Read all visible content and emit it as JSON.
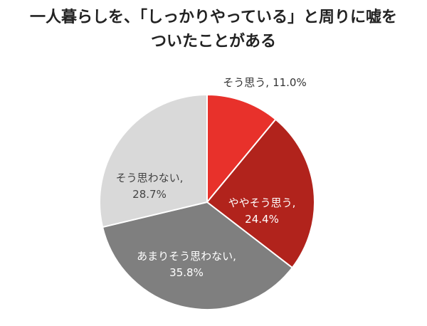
{
  "chart_data": {
    "type": "pie",
    "title": "一人暮らしを、「しっかりやっている」と周りに嘘をついたことがある",
    "categories": [
      "そう思う,",
      "ややそう思う,",
      "あまりそう思わない,",
      "そう思わない,"
    ],
    "values": [
      11.0,
      24.4,
      35.8,
      28.7
    ],
    "value_labels": [
      "11.0%",
      "24.4%",
      "35.8%",
      "28.7%"
    ],
    "colors": [
      "#e8312b",
      "#b1231c",
      "#7f7f7f",
      "#d9d9d9"
    ]
  }
}
